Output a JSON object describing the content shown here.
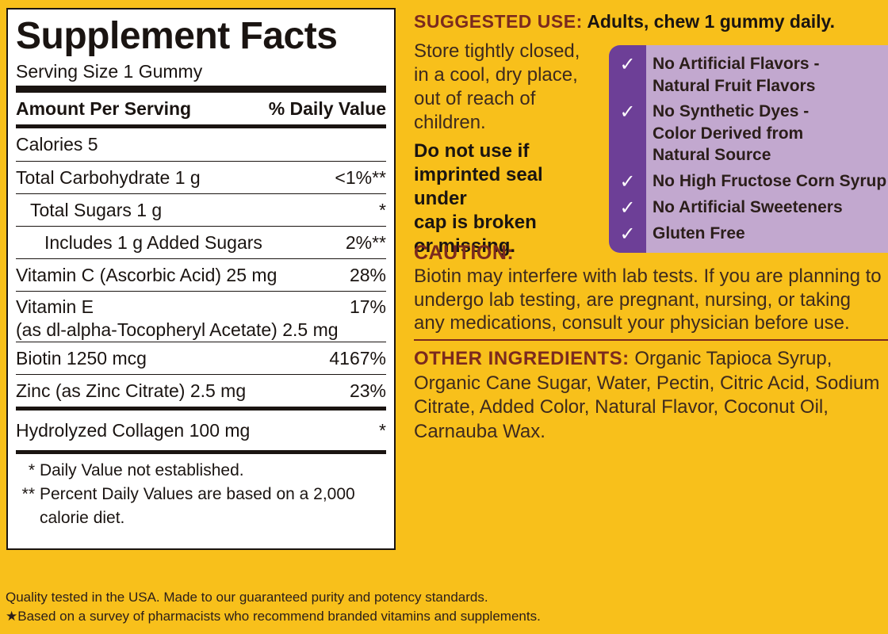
{
  "facts": {
    "title": "Supplement Facts",
    "serving_size": "Serving Size 1 Gummy",
    "header_amount": "Amount Per Serving",
    "header_dv": "% Daily Value",
    "rows": [
      {
        "name": "Calories 5",
        "dv": ""
      },
      {
        "name": "Total Carbohydrate  1 g",
        "dv": "<1%**"
      },
      {
        "name": "Total Sugars  1 g",
        "dv": "*"
      },
      {
        "name": "Includes 1 g Added Sugars",
        "dv": "2%**"
      },
      {
        "name": "Vitamin C (Ascorbic Acid)  25 mg",
        "dv": "28%"
      },
      {
        "name_line1": "Vitamin E",
        "name_line2": "(as dl-alpha-Tocopheryl Acetate) 2.5 mg",
        "dv": "17%"
      },
      {
        "name": "Biotin 1250 mcg",
        "dv": "4167%"
      },
      {
        "name": "Zinc (as Zinc Citrate) 2.5 mg",
        "dv": "23%"
      },
      {
        "name": "Hydrolyzed Collagen 100 mg",
        "dv": "*"
      }
    ],
    "footnote_1_mark": "*",
    "footnote_1": "Daily Value not established.",
    "footnote_2_mark": "**",
    "footnote_2_line1": "Percent Daily Values are based on a 2,000",
    "footnote_2_line2": "calorie diet."
  },
  "suggested_use": {
    "heading": "SUGGESTED USE:",
    "text": "Adults, chew 1 gummy daily."
  },
  "storage": {
    "line1": "Store tightly closed,",
    "line2": "in a cool, dry place,",
    "line3": "out of reach of",
    "line4": "children."
  },
  "warning": {
    "line1": "Do not use if",
    "line2": "imprinted seal under",
    "line3": "cap is broken",
    "line4": "or missing."
  },
  "badges": [
    {
      "line1": "No Artificial Flavors -",
      "line2": "Natural Fruit Flavors"
    },
    {
      "line1": "No Synthetic Dyes -",
      "line2": "Color Derived from",
      "line3": "Natural Source"
    },
    {
      "line1": "No High Fructose Corn Syrup"
    },
    {
      "line1": "No Artificial Sweeteners"
    },
    {
      "line1": "Gluten Free"
    }
  ],
  "check_glyph": "✓",
  "caution": {
    "heading": "CAUTION:",
    "text": "Biotin may interfere with lab tests. If you are planning to undergo lab testing, are pregnant, nursing, or taking any medications, consult your physician before use."
  },
  "other_ingredients": {
    "heading": "OTHER INGREDIENTS:",
    "text": "Organic Tapioca Syrup, Organic Cane Sugar, Water, Pectin, Citric Acid, Sodium Citrate, Added Color, Natural Flavor, Coconut Oil, Carnauba Wax."
  },
  "bottom_notes": {
    "line1": "Quality tested in the USA. Made to our guaranteed purity and potency standards.",
    "line2": "★Based on a survey of pharmacists who recommend branded vitamins and supplements."
  },
  "colors": {
    "background": "#f8c01b",
    "heading_accent": "#7b2a1e",
    "badge_box": "#c2a8cf",
    "badge_strip": "#6d3f97"
  }
}
